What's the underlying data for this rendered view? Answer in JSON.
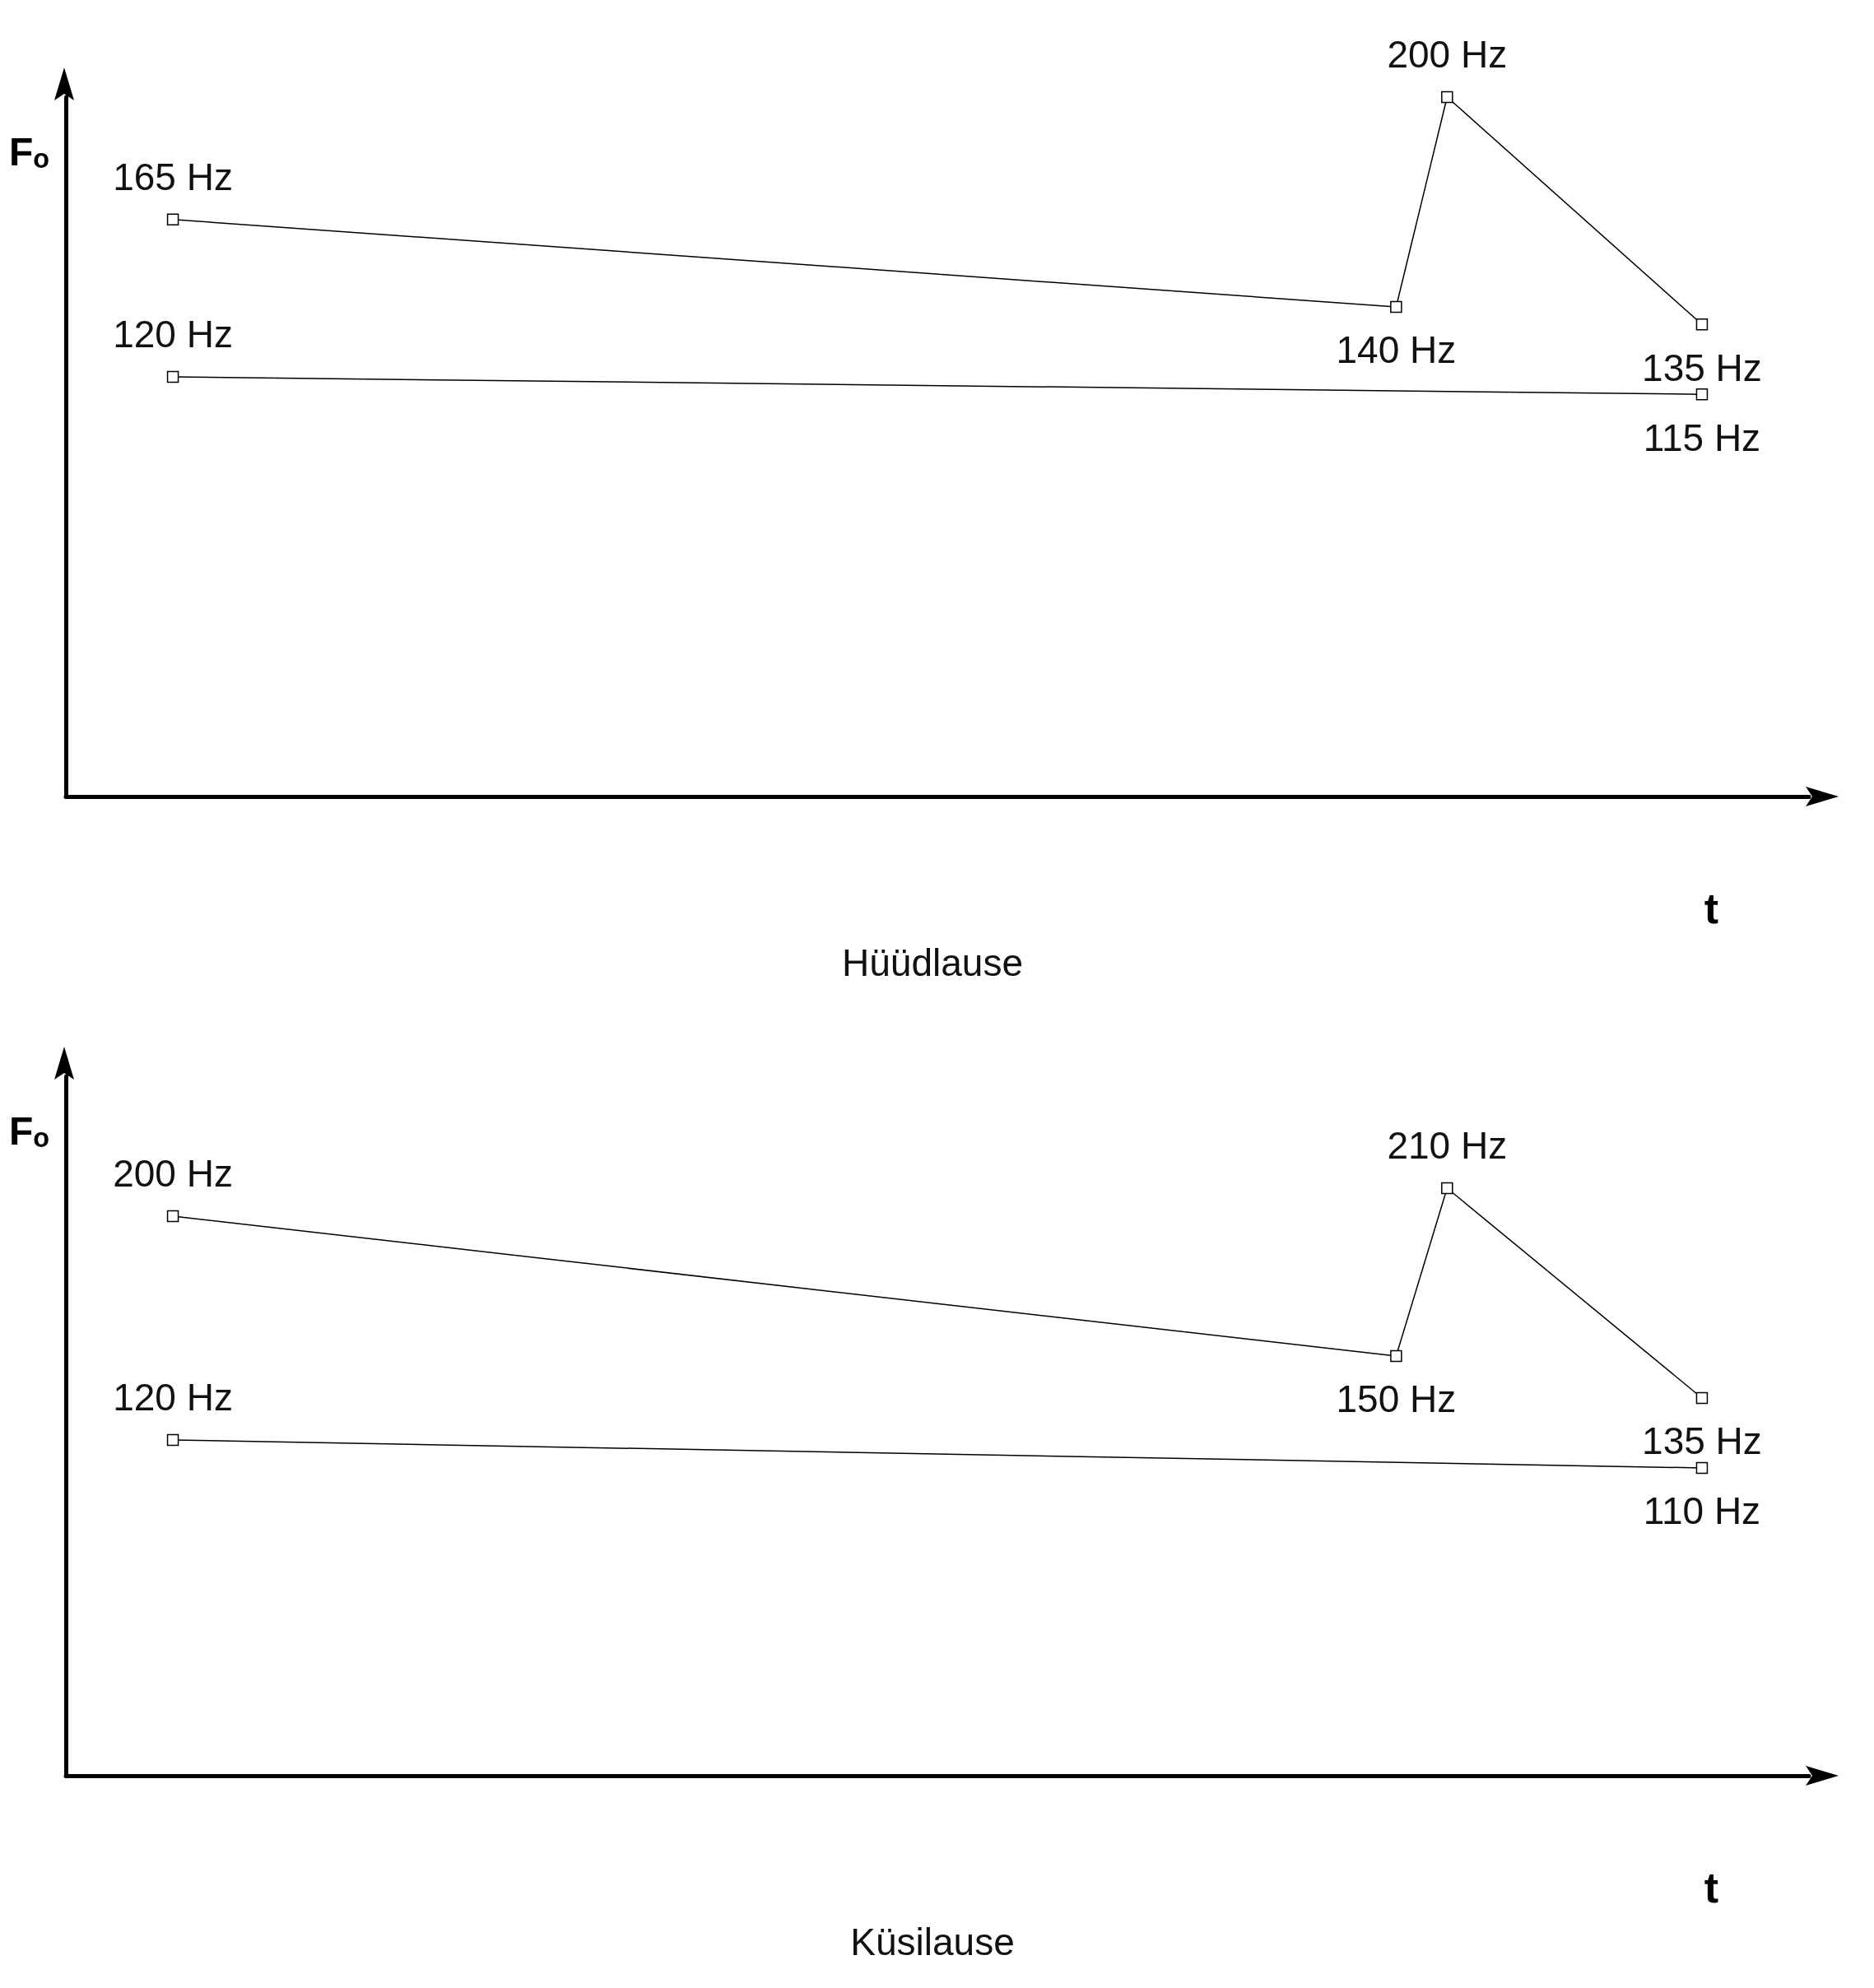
{
  "chart_data": [
    {
      "type": "line",
      "title": "Hüüdlause",
      "xlabel": "t",
      "ylabel": "Fₒ",
      "categories": [
        null,
        null,
        null,
        null,
        null,
        null,
        null,
        null,
        null,
        null,
        null,
        null,
        null,
        null,
        null,
        null,
        null,
        null,
        null,
        null,
        null,
        null,
        null,
        null,
        null,
        null,
        null,
        null,
        null,
        null,
        null
      ],
      "series": [
        {
          "color": "#000000",
          "values": [
            165,
            null,
            null,
            null,
            null,
            null,
            null,
            null,
            null,
            null,
            null,
            null,
            null,
            null,
            null,
            null,
            null,
            null,
            null,
            null,
            null,
            null,
            null,
            null,
            140,
            200,
            null,
            null,
            null,
            null,
            135
          ],
          "value_labels": [
            "165 Hz",
            null,
            null,
            null,
            null,
            null,
            null,
            null,
            null,
            null,
            null,
            null,
            null,
            null,
            null,
            null,
            null,
            null,
            null,
            null,
            null,
            null,
            null,
            null,
            "140 Hz",
            "200 Hz",
            null,
            null,
            null,
            null,
            "135 Hz"
          ]
        },
        {
          "color": "#000000",
          "values": [
            120,
            null,
            null,
            null,
            null,
            null,
            null,
            null,
            null,
            null,
            null,
            null,
            null,
            null,
            null,
            null,
            null,
            null,
            null,
            null,
            null,
            null,
            null,
            null,
            null,
            null,
            null,
            null,
            null,
            null,
            115
          ],
          "value_labels": [
            "120 Hz",
            null,
            null,
            null,
            null,
            null,
            null,
            null,
            null,
            null,
            null,
            null,
            null,
            null,
            null,
            null,
            null,
            null,
            null,
            null,
            null,
            null,
            null,
            null,
            null,
            null,
            null,
            null,
            null,
            null,
            "115 Hz"
          ]
        }
      ],
      "marker": "square",
      "grid": false,
      "tick_labels": false
    },
    {
      "type": "line",
      "title": "Küsilause",
      "xlabel": "t",
      "ylabel": "Fₒ",
      "categories": [
        null,
        null,
        null,
        null,
        null,
        null,
        null,
        null,
        null,
        null,
        null,
        null,
        null,
        null,
        null,
        null,
        null,
        null,
        null,
        null,
        null,
        null,
        null,
        null,
        null,
        null,
        null,
        null,
        null,
        null,
        null
      ],
      "series": [
        {
          "color": "#000000",
          "values": [
            200,
            null,
            null,
            null,
            null,
            null,
            null,
            null,
            null,
            null,
            null,
            null,
            null,
            null,
            null,
            null,
            null,
            null,
            null,
            null,
            null,
            null,
            null,
            null,
            150,
            210,
            null,
            null,
            null,
            null,
            135
          ],
          "value_labels": [
            "200 Hz",
            null,
            null,
            null,
            null,
            null,
            null,
            null,
            null,
            null,
            null,
            null,
            null,
            null,
            null,
            null,
            null,
            null,
            null,
            null,
            null,
            null,
            null,
            null,
            "150 Hz",
            "210 Hz",
            null,
            null,
            null,
            null,
            "135 Hz"
          ]
        },
        {
          "color": "#000000",
          "values": [
            120,
            null,
            null,
            null,
            null,
            null,
            null,
            null,
            null,
            null,
            null,
            null,
            null,
            null,
            null,
            null,
            null,
            null,
            null,
            null,
            null,
            null,
            null,
            null,
            null,
            null,
            null,
            null,
            null,
            null,
            110
          ],
          "value_labels": [
            "120 Hz",
            null,
            null,
            null,
            null,
            null,
            null,
            null,
            null,
            null,
            null,
            null,
            null,
            null,
            null,
            null,
            null,
            null,
            null,
            null,
            null,
            null,
            null,
            null,
            null,
            null,
            null,
            null,
            null,
            null,
            "110 Hz"
          ]
        }
      ],
      "marker": "square",
      "grid": false,
      "tick_labels": false
    }
  ]
}
